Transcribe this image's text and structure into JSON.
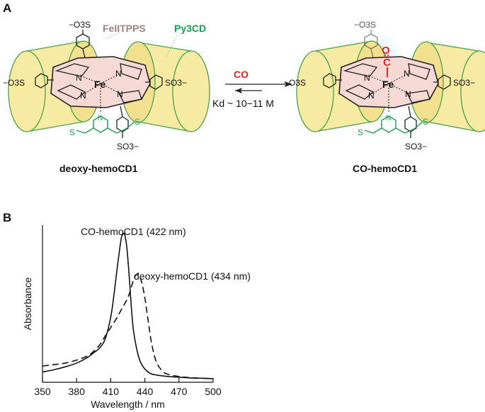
{
  "panel_a": {
    "label": "A",
    "fe_tpps_label": "FeIITPPS",
    "py3cd_label": "Py3CD",
    "reaction_reagent": "CO",
    "kd_text": "Kd ~ 10−11 M",
    "left_caption": "deoxy-hemoCD1",
    "right_caption": "CO-hemoCD1",
    "fe_label": "Fe",
    "n_label": "N",
    "s_label": "S",
    "so3_top": "−O3S",
    "so3_left": "−O3S",
    "so3_right": "SO3−",
    "so3_bottom": "SO3−",
    "co_o": "O",
    "co_c": "C",
    "colors": {
      "cyclodextrin_fill": "#f7eaa3",
      "cyclodextrin_stroke": "#4aa34a",
      "porphyrin_fill": "#f6d8d5",
      "fe_tpps_color": "#9b8585",
      "py3cd_color": "#1f9a55",
      "co_color": "#e2261b"
    }
  },
  "panel_b": {
    "label": "B",
    "annotation_co": "CO-hemoCD1 (422 nm)",
    "annotation_deoxy": "deoxy-hemoCD1 (434 nm)"
  },
  "chart_data": {
    "type": "line",
    "xlabel": "Wavelength / nm",
    "ylabel": "Absorbance",
    "xlim": [
      350,
      500
    ],
    "xticks": [
      350,
      380,
      410,
      440,
      470,
      500
    ],
    "series": [
      {
        "name": "CO-hemoCD1 (422 nm)",
        "style": "solid",
        "x": [
          350,
          360,
          370,
          380,
          390,
          395,
          400,
          405,
          410,
          413,
          416,
          419,
          420,
          422,
          424,
          426,
          428,
          430,
          433,
          436,
          440,
          445,
          450,
          460,
          470,
          480,
          490,
          500
        ],
        "y": [
          0.05,
          0.065,
          0.085,
          0.11,
          0.15,
          0.18,
          0.21,
          0.27,
          0.42,
          0.58,
          0.77,
          0.94,
          0.97,
          0.98,
          0.9,
          0.72,
          0.5,
          0.33,
          0.2,
          0.12,
          0.07,
          0.04,
          0.03,
          0.02,
          0.015,
          0.01,
          0.008,
          0.005
        ]
      },
      {
        "name": "deoxy-hemoCD1 (434 nm)",
        "style": "dashed",
        "x": [
          350,
          360,
          370,
          380,
          390,
          395,
          400,
          405,
          410,
          415,
          420,
          425,
          428,
          431,
          434,
          437,
          440,
          443,
          446,
          450,
          455,
          460,
          470,
          480,
          490,
          500
        ],
        "y": [
          0.09,
          0.1,
          0.11,
          0.13,
          0.16,
          0.19,
          0.23,
          0.29,
          0.35,
          0.41,
          0.48,
          0.55,
          0.62,
          0.69,
          0.71,
          0.66,
          0.55,
          0.39,
          0.24,
          0.12,
          0.06,
          0.035,
          0.02,
          0.012,
          0.008,
          0.006
        ]
      }
    ]
  }
}
